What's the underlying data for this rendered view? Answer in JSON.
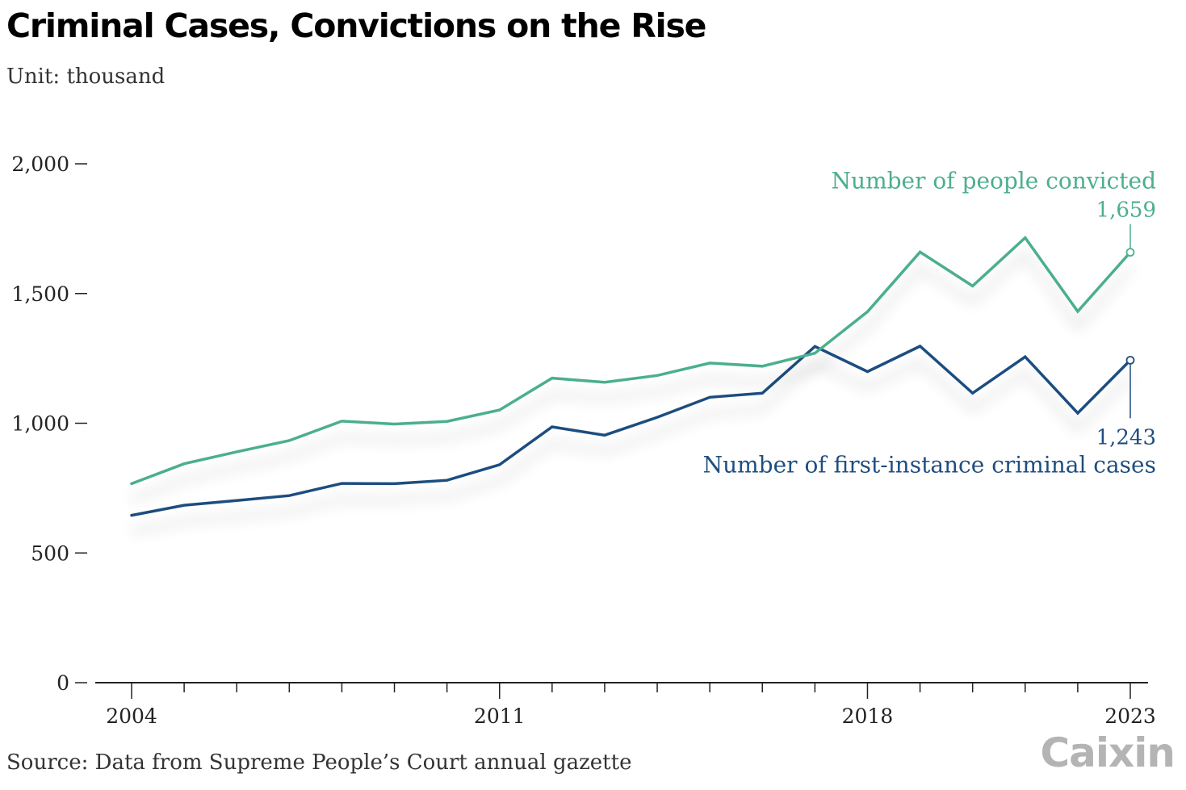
{
  "header": {
    "title": "Criminal Cases, Convictions on the Rise",
    "subtitle": "Unit: thousand"
  },
  "footer": {
    "source": "Source: Data from Supreme People’s Court annual gazette",
    "logo": "Caixin"
  },
  "colors": {
    "convicted": "#4caf8c",
    "cases": "#1f4e80",
    "axis": "#222222",
    "text": "#222222"
  },
  "chart_data": {
    "type": "line",
    "title": "Criminal Cases, Convictions on the Rise",
    "subtitle": "Unit: thousand",
    "xlabel": "",
    "ylabel": "",
    "x": [
      2004,
      2005,
      2006,
      2007,
      2008,
      2009,
      2010,
      2011,
      2012,
      2013,
      2014,
      2015,
      2016,
      2017,
      2018,
      2019,
      2020,
      2021,
      2022,
      2023
    ],
    "xticks_labeled": [
      2004,
      2011,
      2018,
      2023
    ],
    "ylim": [
      0,
      2000
    ],
    "yticks": [
      0,
      500,
      1000,
      1500,
      2000
    ],
    "ytick_labels": [
      "0",
      "500",
      "1,000",
      "1,500",
      "2,000"
    ],
    "grid": false,
    "series": [
      {
        "name": "Number of people convicted",
        "key": "convicted",
        "values": [
          767,
          844,
          890,
          933,
          1008,
          997,
          1007,
          1051,
          1174,
          1158,
          1184,
          1232,
          1220,
          1270,
          1430,
          1660,
          1529,
          1715,
          1431,
          1659
        ],
        "end_label": "1,659",
        "label_position": "above"
      },
      {
        "name": "Number of first-instance criminal cases",
        "key": "cases",
        "values": [
          645,
          684,
          702,
          721,
          768,
          767,
          780,
          840,
          986,
          954,
          1023,
          1100,
          1116,
          1296,
          1199,
          1297,
          1116,
          1256,
          1039,
          1243
        ],
        "end_label": "1,243",
        "label_position": "below"
      }
    ]
  }
}
